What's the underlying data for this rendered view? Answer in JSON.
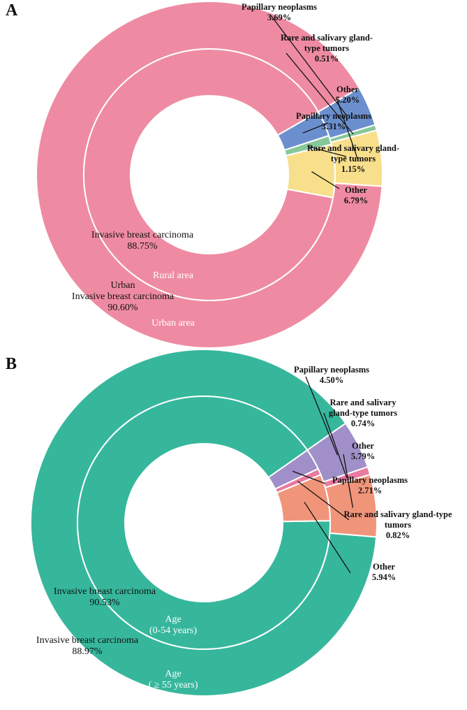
{
  "chart_data": [
    {
      "type": "pie",
      "panel_label": "A",
      "colors": {
        "Invasive breast carcinoma": "#ee8ba2",
        "Papillary neoplasms": "#6b8fce",
        "Rare and salivary gland-type tumors": "#86c79a",
        "Other": "#f8df8c"
      },
      "categories": [
        "Invasive breast carcinoma",
        "Papillary neoplasms",
        "Rare and salivary gland-type tumors",
        "Other"
      ],
      "series": [
        {
          "name": "Urban area",
          "ring": "outer",
          "values": [
            90.6,
            3.69,
            0.51,
            5.2
          ],
          "labels": [
            [
              "Urban",
              "Invasive breast carcinoma",
              "90.60%"
            ],
            [
              "Papillary neoplasms",
              "3.69%"
            ],
            [
              "Rare and salivary gland-",
              "type tumors",
              "0.51%"
            ],
            [
              "Other",
              "5.20%"
            ]
          ]
        },
        {
          "name": "Rural area",
          "ring": "inner",
          "values": [
            88.75,
            3.31,
            1.15,
            6.79
          ],
          "labels": [
            [
              "Invasive breast carcinoma",
              "88.75%"
            ],
            [
              "Papillary neoplasms",
              "3.31%"
            ],
            [
              "Rare and salivary gland-",
              "type tumors",
              "1.15%"
            ],
            [
              "Other",
              "6.79%"
            ]
          ]
        }
      ],
      "ring_names": {
        "outer": [
          "Urban area"
        ],
        "inner": [
          "Rural area"
        ]
      }
    },
    {
      "type": "pie",
      "panel_label": "B",
      "colors": {
        "Invasive breast carcinoma": "#36b79c",
        "Papillary neoplasms": "#a08fc8",
        "Rare and salivary gland-type tumors": "#e97aa0",
        "Other": "#f0957a"
      },
      "categories": [
        "Invasive breast carcinoma",
        "Papillary neoplasms",
        "Rare and salivary gland-type tumors",
        "Other"
      ],
      "series": [
        {
          "name": "Age (≥ 55 years)",
          "ring": "outer",
          "values": [
            88.97,
            4.5,
            0.74,
            5.79
          ],
          "labels": [
            [
              "Invasive breast carcinoma",
              "88.97%"
            ],
            [
              "Papillary neoplasms",
              "4.50%"
            ],
            [
              "Rare and salivary",
              "gland-type tumors",
              "0.74%"
            ],
            [
              "Other",
              "5.79%"
            ]
          ]
        },
        {
          "name": "Age (0-54 years)",
          "ring": "inner",
          "values": [
            90.53,
            2.71,
            0.82,
            5.94
          ],
          "labels": [
            [
              "Invasive breast carcinoma",
              "90.53%"
            ],
            [
              "Papillary neoplasms",
              "2.71%"
            ],
            [
              "Rare and salivary gland-type",
              "tumors",
              "0.82%"
            ],
            [
              "Other",
              "5.94%"
            ]
          ]
        }
      ],
      "ring_names": {
        "outer": [
          "Age",
          "( ≥ 55 years)"
        ],
        "inner": [
          "Age",
          "(0-54 years)"
        ]
      }
    }
  ]
}
